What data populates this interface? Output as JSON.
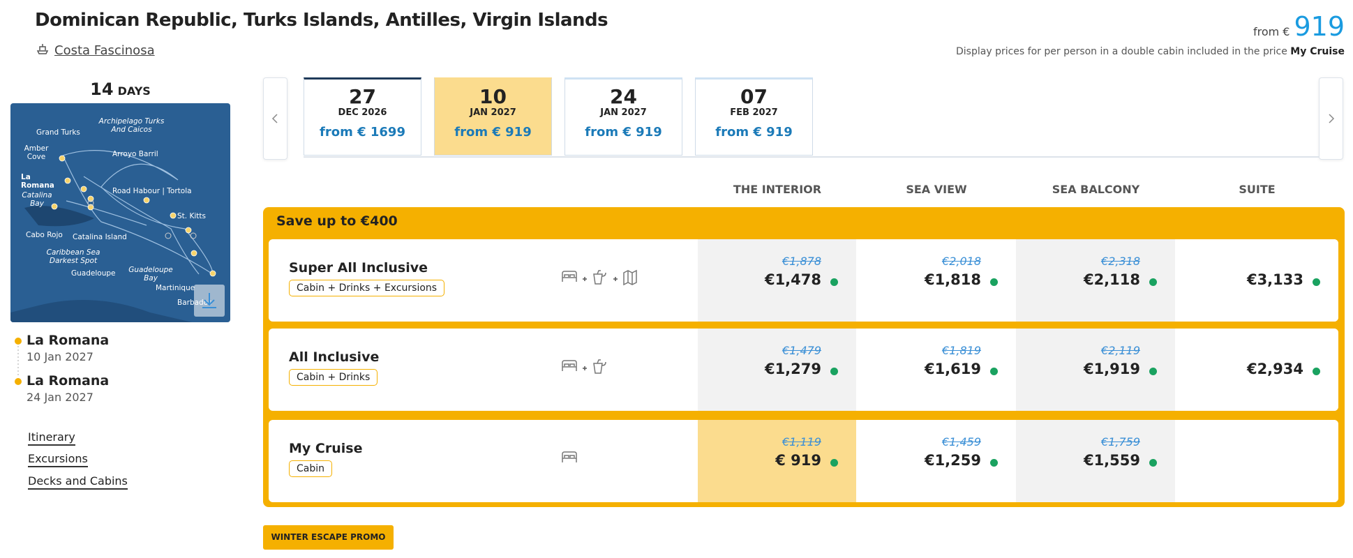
{
  "header": {
    "title": "Dominican Republic, Turks Islands, Antilles, Virgin Islands",
    "ship": "Costa Fascinosa",
    "from_label": "from €",
    "from_price": "919",
    "note": "Display prices for per person in a double cabin included in the price",
    "note_bold": "My Cruise"
  },
  "duration": {
    "number": "14",
    "unit": "DAYS"
  },
  "map_labels": [
    "Archipelago Turks And Caicos",
    "Grand Turks",
    "Arroyo Barril",
    "Amber Cove",
    "La Romana",
    "Catalina Bay",
    "Road Habour | Tortola",
    "St. Kitts",
    "Cabo Rojo",
    "Catalina Island",
    "Caribbean Sea Darkest Spot",
    "Guadeloupe",
    "Guadeloupe Bay",
    "Martinique",
    "Barbados"
  ],
  "route": [
    {
      "port": "La Romana",
      "date": "10 Jan 2027"
    },
    {
      "port": "La Romana",
      "date": "24 Jan 2027"
    }
  ],
  "links": [
    "Itinerary",
    "Excursions",
    "Decks and Cabins"
  ],
  "dates": [
    {
      "day": "27",
      "month": "DEC 2026",
      "price": "from € 1699"
    },
    {
      "day": "10",
      "month": "JAN 2027",
      "price": "from € 919"
    },
    {
      "day": "24",
      "month": "JAN 2027",
      "price": "from € 919"
    },
    {
      "day": "07",
      "month": "FEB 2027",
      "price": "from € 919"
    }
  ],
  "selected": {
    "date": 1,
    "package": 2,
    "cabin": 0
  },
  "cabin_types": [
    "THE INTERIOR",
    "SEA VIEW",
    "SEA BALCONY",
    "SUITE"
  ],
  "promo_banner": "Save up to €400",
  "packages": [
    {
      "name": "Super All Inclusive",
      "includes": "Cabin + Drinks + Excursions",
      "prices": [
        {
          "was": "€1,878",
          "now": "€1,478"
        },
        {
          "was": "€2,018",
          "now": "€1,818"
        },
        {
          "was": "€2,318",
          "now": "€2,118"
        },
        {
          "now": "€3,133"
        }
      ]
    },
    {
      "name": "All Inclusive",
      "includes": "Cabin + Drinks",
      "prices": [
        {
          "was": "€1,479",
          "now": "€1,279"
        },
        {
          "was": "€1,819",
          "now": "€1,619"
        },
        {
          "was": "€2,119",
          "now": "€1,919"
        },
        {
          "now": "€2,934"
        }
      ]
    },
    {
      "name": "My Cruise",
      "includes": "Cabin",
      "prices": [
        {
          "was": "€1,119",
          "now": "€ 919"
        },
        {
          "was": "€1,459",
          "now": "€1,259"
        },
        {
          "was": "€1,759",
          "now": "€1,559"
        }
      ]
    }
  ],
  "promo_tag": "WINTER ESCAPE PROMO"
}
